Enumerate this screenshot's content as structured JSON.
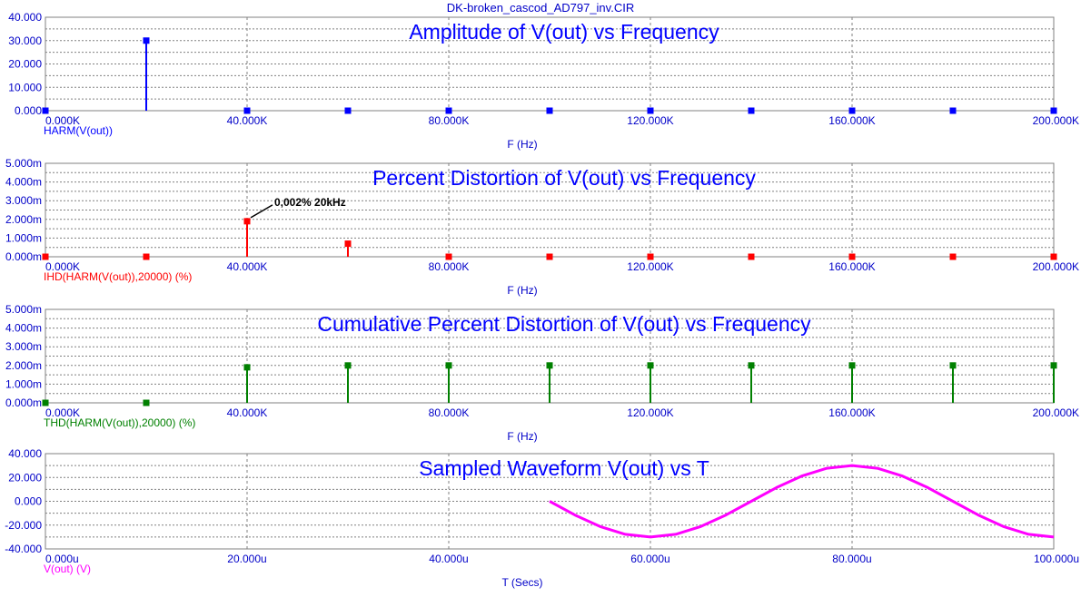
{
  "window_title": "DK-broken_cascod_AD797_inv.CIR",
  "chart_data": [
    {
      "type": "bar",
      "title": "Amplitude of V(out) vs Frequency",
      "xlabel": "F (Hz)",
      "series_label": "HARM(V(out))",
      "color": "#0000ff",
      "xlim": [
        0,
        200000
      ],
      "ylim": [
        0,
        40
      ],
      "x_ticks": [
        "0.000K",
        "40.000K",
        "80.000K",
        "120.000K",
        "160.000K",
        "200.000K"
      ],
      "y_ticks": [
        "0.000",
        "10.000",
        "20.000",
        "30.000",
        "40.000"
      ],
      "x": [
        0,
        20000,
        40000,
        60000,
        80000,
        100000,
        120000,
        140000,
        160000,
        180000,
        200000
      ],
      "values": [
        0,
        30,
        0,
        0,
        0,
        0,
        0,
        0,
        0,
        0,
        0
      ]
    },
    {
      "type": "bar",
      "title": "Percent Distortion of V(out) vs Frequency",
      "xlabel": "F (Hz)",
      "series_label": "IHD(HARM(V(out)),20000) (%)",
      "color": "#ff0000",
      "xlim": [
        0,
        200000
      ],
      "ylim": [
        0,
        0.005
      ],
      "x_ticks": [
        "0.000K",
        "40.000K",
        "80.000K",
        "120.000K",
        "160.000K",
        "200.000K"
      ],
      "y_ticks": [
        "0.000m",
        "1.000m",
        "2.000m",
        "3.000m",
        "4.000m",
        "5.000m"
      ],
      "x": [
        0,
        20000,
        40000,
        60000,
        80000,
        100000,
        120000,
        140000,
        160000,
        180000,
        200000
      ],
      "values": [
        0,
        0,
        0.0019,
        0.0007,
        0,
        0,
        0,
        0,
        0,
        0,
        0
      ],
      "annotation": {
        "text": "0,002% 20kHz",
        "x": 40000,
        "y": 0.0019
      }
    },
    {
      "type": "bar",
      "title": "Cumulative Percent Distortion of V(out) vs Frequency",
      "xlabel": "F (Hz)",
      "series_label": "THD(HARM(V(out)),20000) (%)",
      "color": "#008000",
      "xlim": [
        0,
        200000
      ],
      "ylim": [
        0,
        0.005
      ],
      "x_ticks": [
        "0.000K",
        "40.000K",
        "80.000K",
        "120.000K",
        "160.000K",
        "200.000K"
      ],
      "y_ticks": [
        "0.000m",
        "1.000m",
        "2.000m",
        "3.000m",
        "4.000m",
        "5.000m"
      ],
      "x": [
        0,
        20000,
        40000,
        60000,
        80000,
        100000,
        120000,
        140000,
        160000,
        180000,
        200000
      ],
      "values": [
        0,
        0,
        0.0019,
        0.002,
        0.002,
        0.002,
        0.002,
        0.002,
        0.002,
        0.002,
        0.002
      ]
    },
    {
      "type": "line",
      "title": "Sampled Waveform  V(out) vs T",
      "xlabel": "T (Secs)",
      "series_label": "V(out) (V)",
      "color": "#ff00ff",
      "xlim": [
        0,
        0.0001
      ],
      "ylim": [
        -40,
        40
      ],
      "x_ticks": [
        "0.000u",
        "20.000u",
        "40.000u",
        "60.000u",
        "80.000u",
        "100.000u"
      ],
      "y_ticks": [
        "-40.000",
        "-20.000",
        "0.000",
        "20.000",
        "40.000"
      ],
      "x": [
        5e-05,
        5.25e-05,
        5.5e-05,
        5.75e-05,
        6e-05,
        6.25e-05,
        6.5e-05,
        6.75e-05,
        7e-05,
        7.25e-05,
        7.5e-05,
        7.75e-05,
        8e-05,
        8.25e-05,
        8.5e-05,
        8.75e-05,
        9e-05,
        9.25e-05,
        9.5e-05,
        9.75e-05,
        0.0001
      ],
      "values": [
        0,
        -11.5,
        -21.2,
        -27.7,
        -30.0,
        -27.7,
        -21.2,
        -11.5,
        0,
        11.5,
        21.2,
        27.7,
        30.0,
        27.7,
        21.2,
        11.5,
        0,
        -11.5,
        -21.2,
        -27.7,
        -30.0
      ]
    }
  ]
}
